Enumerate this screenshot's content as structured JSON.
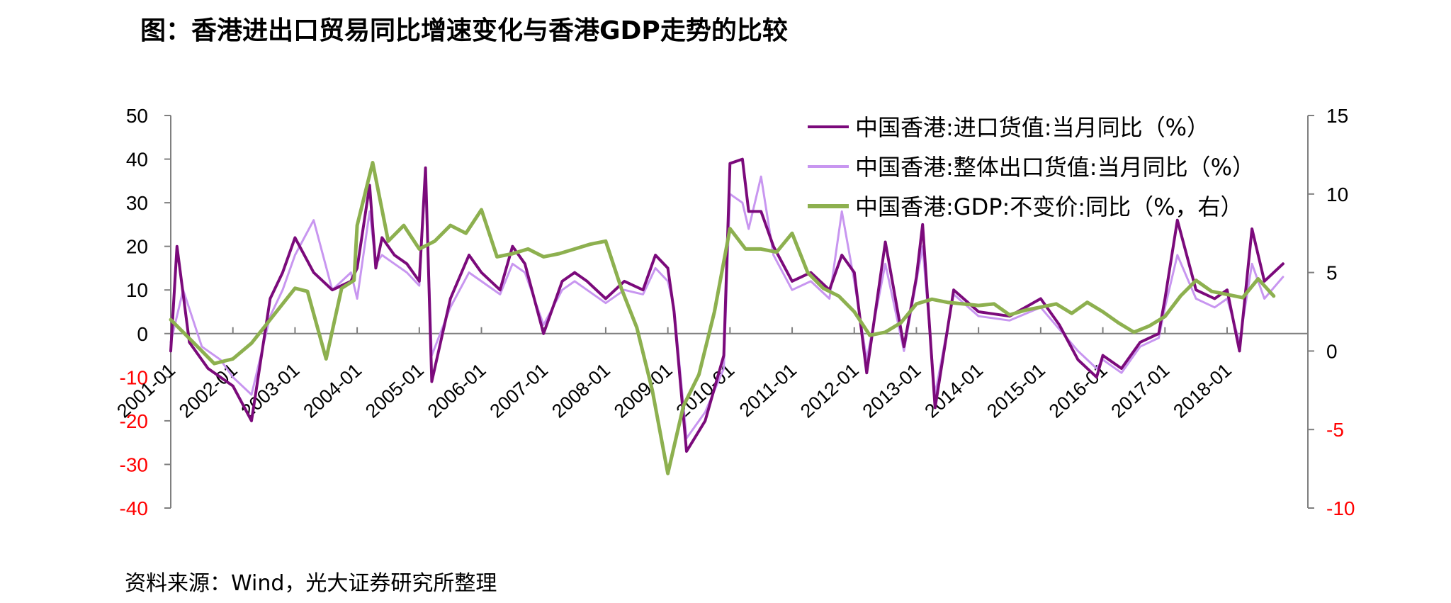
{
  "title": "图：香港进出口贸易同比增速变化与香港GDP走势的比较",
  "source": "资料来源：Wind，光大证券研究所整理",
  "colors": {
    "import": "#7b0a7b",
    "export": "#c896f0",
    "gdp": "#8db04f",
    "neg": "#ff0000",
    "axis": "#7f7f7f"
  },
  "chart_data": {
    "type": "line",
    "y_left": {
      "min": -40,
      "max": 50,
      "ticks": [
        50,
        40,
        30,
        20,
        10,
        0,
        -10,
        -20,
        -30,
        -40
      ]
    },
    "y_right": {
      "min": -10,
      "max": 15,
      "ticks": [
        15,
        10,
        5,
        0,
        -5,
        -10
      ]
    },
    "x_ticks": [
      "2001-01",
      "2002-01",
      "2003-01",
      "2004-01",
      "2005-01",
      "2006-01",
      "2007-01",
      "2008-01",
      "2009-01",
      "2010-01",
      "2011-01",
      "2012-01",
      "2013-01",
      "2014-01",
      "2015-01",
      "2016-01",
      "2017-01",
      "2018-01"
    ],
    "legend": [
      "中国香港:进口货值:当月同比（%）",
      "中国香港:整体出口货值:当月同比（%）",
      "中国香港:GDP:不变价:同比（%，右）"
    ],
    "series": [
      {
        "name": "中国香港:进口货值:当月同比（%）",
        "axis": "left",
        "x": [
          2001.0,
          2001.1,
          2001.3,
          2001.6,
          2002.0,
          2002.3,
          2002.6,
          2002.8,
          2003.0,
          2003.3,
          2003.6,
          2003.9,
          2004.0,
          2004.2,
          2004.3,
          2004.4,
          2004.6,
          2004.8,
          2005.0,
          2005.1,
          2005.2,
          2005.5,
          2005.8,
          2006.0,
          2006.3,
          2006.5,
          2006.7,
          2007.0,
          2007.3,
          2007.5,
          2007.7,
          2008.0,
          2008.3,
          2008.6,
          2008.8,
          2009.0,
          2009.1,
          2009.3,
          2009.6,
          2009.9,
          2010.0,
          2010.2,
          2010.3,
          2010.5,
          2010.7,
          2011.0,
          2011.3,
          2011.6,
          2011.8,
          2012.0,
          2012.2,
          2012.5,
          2012.8,
          2013.0,
          2013.1,
          2013.3,
          2013.6,
          2014.0,
          2014.5,
          2015.0,
          2015.3,
          2015.6,
          2015.9,
          2016.0,
          2016.3,
          2016.6,
          2016.9,
          2017.0,
          2017.2,
          2017.5,
          2017.8,
          2018.0,
          2018.2,
          2018.4,
          2018.6,
          2018.9
        ],
        "values": [
          -4,
          20,
          -2,
          -8,
          -12,
          -20,
          8,
          14,
          22,
          14,
          10,
          12,
          15,
          34,
          15,
          22,
          18,
          16,
          12,
          38,
          -11,
          8,
          18,
          14,
          10,
          20,
          16,
          0,
          12,
          14,
          12,
          8,
          12,
          10,
          18,
          15,
          5,
          -27,
          -20,
          -5,
          39,
          40,
          28,
          28,
          20,
          12,
          14,
          10,
          18,
          14,
          -9,
          21,
          -3,
          13,
          25,
          -17,
          10,
          5,
          4,
          8,
          2,
          -6,
          -10,
          -5,
          -8,
          -2,
          0,
          8,
          26,
          10,
          8,
          10,
          -4,
          24,
          12,
          16
        ],
        "color": "#7b0a7b"
      },
      {
        "name": "中国香港:整体出口货值:当月同比（%）",
        "axis": "left",
        "x": [
          2001.0,
          2001.2,
          2001.5,
          2001.8,
          2002.0,
          2002.3,
          2002.6,
          2002.8,
          2003.0,
          2003.3,
          2003.6,
          2003.9,
          2004.0,
          2004.2,
          2004.3,
          2004.4,
          2004.6,
          2004.8,
          2005.0,
          2005.1,
          2005.2,
          2005.5,
          2005.8,
          2006.0,
          2006.3,
          2006.5,
          2006.7,
          2007.0,
          2007.3,
          2007.5,
          2007.7,
          2008.0,
          2008.3,
          2008.6,
          2008.8,
          2009.0,
          2009.1,
          2009.3,
          2009.6,
          2009.9,
          2010.0,
          2010.2,
          2010.3,
          2010.5,
          2010.7,
          2011.0,
          2011.3,
          2011.6,
          2011.8,
          2012.0,
          2012.2,
          2012.5,
          2012.8,
          2013.0,
          2013.1,
          2013.3,
          2013.6,
          2014.0,
          2014.5,
          2015.0,
          2015.3,
          2015.6,
          2015.9,
          2016.0,
          2016.3,
          2016.6,
          2016.9,
          2017.0,
          2017.2,
          2017.5,
          2017.8,
          2018.0,
          2018.2,
          2018.4,
          2018.6,
          2018.9
        ],
        "values": [
          -2,
          10,
          -3,
          -6,
          -10,
          -14,
          4,
          10,
          18,
          26,
          10,
          14,
          8,
          28,
          16,
          18,
          16,
          14,
          11,
          36,
          -5,
          6,
          14,
          12,
          9,
          16,
          14,
          2,
          10,
          12,
          10,
          7,
          10,
          9,
          15,
          12,
          6,
          -24,
          -18,
          -8,
          32,
          30,
          24,
          36,
          18,
          10,
          12,
          8,
          28,
          12,
          -6,
          16,
          -4,
          12,
          20,
          -14,
          9,
          4,
          3,
          6,
          1,
          -4,
          -8,
          -6,
          -9,
          -3,
          -1,
          6,
          18,
          8,
          6,
          8,
          -2,
          16,
          8,
          13
        ],
        "color": "#c896f0"
      },
      {
        "name": "中国香港:GDP:不变价:同比（%，右）",
        "axis": "right",
        "x": [
          2001.0,
          2001.2,
          2001.5,
          2001.7,
          2002.0,
          2002.3,
          2002.7,
          2003.0,
          2003.2,
          2003.5,
          2003.75,
          2003.95,
          2004.0,
          2004.25,
          2004.5,
          2004.75,
          2005.0,
          2005.25,
          2005.5,
          2005.75,
          2006.0,
          2006.25,
          2006.5,
          2006.75,
          2007.0,
          2007.25,
          2007.5,
          2007.75,
          2008.0,
          2008.25,
          2008.5,
          2008.75,
          2009.0,
          2009.25,
          2009.5,
          2009.75,
          2010.0,
          2010.25,
          2010.5,
          2010.75,
          2011.0,
          2011.25,
          2011.5,
          2011.75,
          2012.0,
          2012.25,
          2012.5,
          2012.75,
          2013.0,
          2013.25,
          2013.5,
          2013.75,
          2014.0,
          2014.25,
          2014.5,
          2014.75,
          2015.0,
          2015.25,
          2015.5,
          2015.75,
          2016.0,
          2016.25,
          2016.5,
          2016.75,
          2017.0,
          2017.25,
          2017.5,
          2017.75,
          2018.0,
          2018.25,
          2018.5,
          2018.75
        ],
        "values": [
          2,
          1.2,
          0,
          -0.8,
          -0.5,
          0.5,
          2.5,
          4,
          3.8,
          -0.5,
          4,
          4.5,
          8,
          12,
          7,
          8,
          6.5,
          7,
          8,
          7.5,
          9,
          6,
          6.2,
          6.5,
          6,
          6.2,
          6.5,
          6.8,
          7,
          4,
          1.5,
          -2.5,
          -7.8,
          -3.5,
          -1.5,
          2.5,
          7.8,
          6.5,
          6.5,
          6.3,
          7.5,
          5,
          4,
          3.5,
          2.5,
          1,
          1.2,
          1.8,
          3,
          3.3,
          3.1,
          3,
          2.9,
          3,
          2.3,
          2.6,
          2.8,
          3,
          2.4,
          3.1,
          2.5,
          1.8,
          1.2,
          1.6,
          2.2,
          3.5,
          4.5,
          3.8,
          3.6,
          3.4,
          4.6,
          3.5
        ],
        "color": "#8db04f"
      }
    ]
  }
}
